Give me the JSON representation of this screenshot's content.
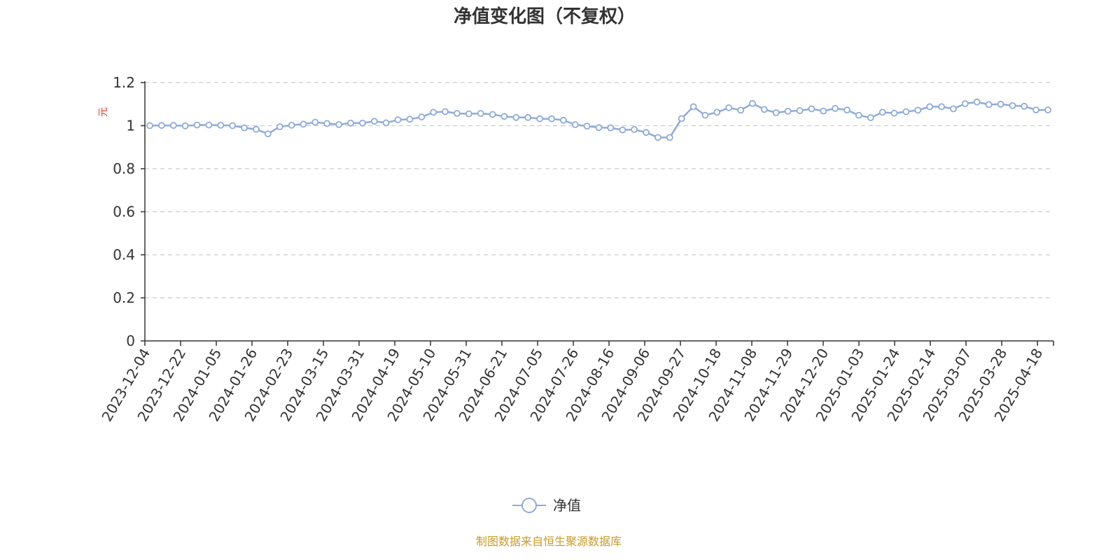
{
  "chart_data": {
    "type": "line",
    "title": "净值变化图（不复权）",
    "ylabel": "元",
    "ylim": [
      0,
      1.2
    ],
    "y_ticks": [
      "0",
      "0.2",
      "0.4",
      "0.6",
      "0.8",
      "1",
      "1.2"
    ],
    "x_tick_labels": [
      "2023-12-04",
      "2023-12-22",
      "2024-01-05",
      "2024-01-26",
      "2024-02-23",
      "2024-03-15",
      "2024-03-31",
      "2024-04-19",
      "2024-05-10",
      "2024-05-31",
      "2024-06-21",
      "2024-07-05",
      "2024-07-26",
      "2024-08-16",
      "2024-09-06",
      "2024-09-27",
      "2024-10-18",
      "2024-11-08",
      "2024-11-29",
      "2024-12-20",
      "2025-01-03",
      "2025-01-24",
      "2025-02-14",
      "2025-03-07",
      "2025-03-28",
      "2025-04-18"
    ],
    "grid": "horizontal-dashed",
    "legend_position": "bottom-center",
    "series": [
      {
        "name": "净值",
        "color": "#8fabd7",
        "marker": "hollow-circle",
        "values": [
          1.0,
          1.001,
          1.001,
          0.999,
          1.003,
          1.003,
          1.002,
          1.0,
          0.99,
          0.983,
          0.962,
          0.995,
          1.002,
          1.007,
          1.016,
          1.01,
          1.005,
          1.012,
          1.012,
          1.02,
          1.013,
          1.027,
          1.03,
          1.04,
          1.062,
          1.065,
          1.057,
          1.055,
          1.057,
          1.052,
          1.043,
          1.038,
          1.038,
          1.032,
          1.032,
          1.025,
          1.005,
          0.998,
          0.991,
          0.99,
          0.98,
          0.982,
          0.968,
          0.945,
          0.945,
          1.033,
          1.088,
          1.048,
          1.062,
          1.083,
          1.072,
          1.103,
          1.075,
          1.06,
          1.067,
          1.07,
          1.078,
          1.068,
          1.08,
          1.073,
          1.048,
          1.037,
          1.062,
          1.058,
          1.065,
          1.072,
          1.088,
          1.088,
          1.078,
          1.102,
          1.11,
          1.098,
          1.1,
          1.093,
          1.09,
          1.073,
          1.073
        ]
      }
    ]
  },
  "source_note": "制图数据来自恒生聚源数据库",
  "colors": {
    "axis": "#333333",
    "grid": "#cccccc",
    "unit_label": "#e8342f",
    "source_note": "#c89a2a"
  }
}
